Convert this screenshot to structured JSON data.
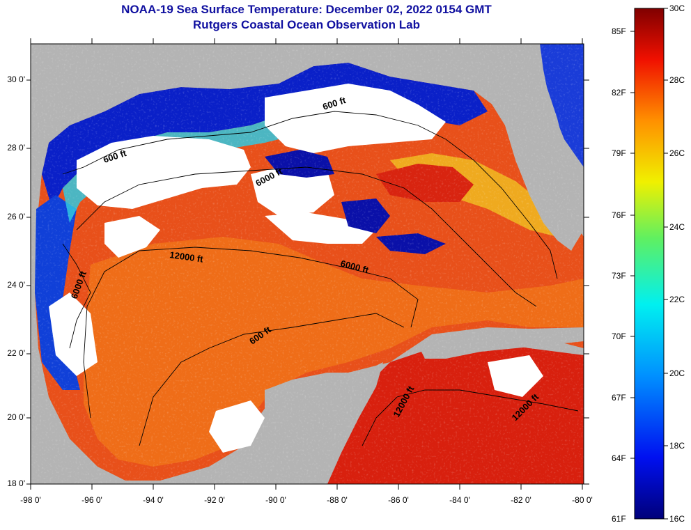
{
  "title": "NOAA-19 Sea Surface Temperature:  December 02, 2022 0154 GMT",
  "subtitle": "Rutgers Coastal Ocean Observation Lab",
  "lat_ticks": [
    "30 0'",
    "28 0'",
    "26 0'",
    "24 0'",
    "22 0'",
    "20 0'",
    "18 0'"
  ],
  "lon_ticks": [
    "-98 0'",
    "-96 0'",
    "-94 0'",
    "-92 0'",
    "-90 0'",
    "-88 0'",
    "-86 0'",
    "-84 0'",
    "-82 0'",
    "-80 0'"
  ],
  "colorbar": {
    "fahrenheit_labels": [
      "85F",
      "82F",
      "79F",
      "76F",
      "73F",
      "70F",
      "67F",
      "64F",
      "61F"
    ],
    "celsius_labels": [
      "30C",
      "28C",
      "26C",
      "24C",
      "22C",
      "20C",
      "18C",
      "16C"
    ]
  },
  "contour_labels": [
    "600 ft",
    "600 ft",
    "6000 ft",
    "12000 ft",
    "6000 ft",
    "6000 ft",
    "600 ft",
    "12000 ft",
    "12000 ft"
  ],
  "colors": {
    "land": "#b4b4b4",
    "cloud": "#ffffff",
    "title": "#1010a0"
  }
}
